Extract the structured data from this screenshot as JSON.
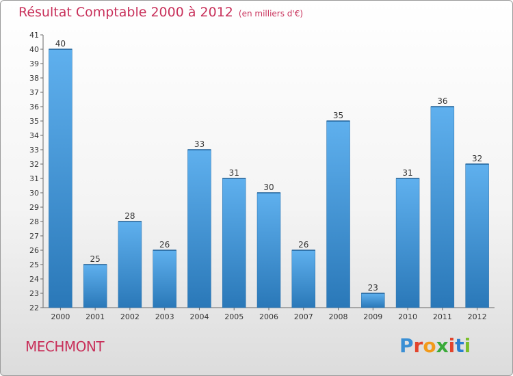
{
  "header": {
    "title": "Résultat Comptable 2000 à 2012",
    "unit": "(en milliers d'€)"
  },
  "footer": {
    "commune": "MECHMONT",
    "logo_letters": [
      "P",
      "r",
      "o",
      "x",
      "i",
      "t",
      "i"
    ],
    "logo_colors": [
      "#3a8fd4",
      "#e2442c",
      "#f29a1a",
      "#3aaa3a",
      "#e2442c",
      "#2a7fd0",
      "#7bbf2a"
    ]
  },
  "chart_data": {
    "type": "bar",
    "title": "Résultat Comptable 2000 à 2012",
    "categories": [
      "2000",
      "2001",
      "2002",
      "2003",
      "2004",
      "2005",
      "2006",
      "2007",
      "2008",
      "2009",
      "2010",
      "2011",
      "2012"
    ],
    "values": [
      40,
      25,
      28,
      26,
      33,
      31,
      30,
      26,
      35,
      23,
      31,
      36,
      32
    ],
    "ylim": [
      22,
      41
    ],
    "yticks": [
      22,
      23,
      24,
      25,
      26,
      27,
      28,
      29,
      30,
      31,
      32,
      33,
      34,
      35,
      36,
      37,
      38,
      39,
      40,
      41
    ],
    "grid": false,
    "bar_color": "#3f93d8",
    "bar_color_light": "#5fb0ee",
    "bar_color_dark": "#2a78b8"
  }
}
